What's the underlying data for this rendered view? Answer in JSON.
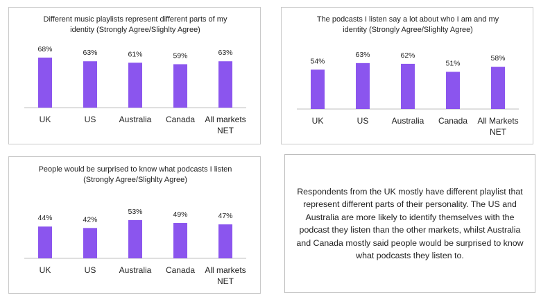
{
  "chart_data": [
    {
      "type": "bar",
      "title": [
        "Different music playlists represent different parts of my",
        "identity (Strongly Agree/Slighlty Agree)"
      ],
      "categories": [
        [
          "UK"
        ],
        [
          "US"
        ],
        [
          "Australia"
        ],
        [
          "Canada"
        ],
        [
          "All markets",
          "NET"
        ]
      ],
      "values": [
        68,
        63,
        61,
        59,
        63
      ],
      "value_labels": [
        "68%",
        "63%",
        "61%",
        "59%",
        "63%"
      ],
      "color": "#8b55ee"
    },
    {
      "type": "bar",
      "title": [
        "The podcasts I listen say a lot about who I am and my",
        "identity (Strongly Agree/Slighlty Agree)"
      ],
      "categories": [
        [
          "UK"
        ],
        [
          "US"
        ],
        [
          "Australia"
        ],
        [
          "Canada"
        ],
        [
          "All Markets",
          "NET"
        ]
      ],
      "values": [
        54,
        63,
        62,
        51,
        58
      ],
      "value_labels": [
        "54%",
        "63%",
        "62%",
        "51%",
        "58%"
      ],
      "color": "#8b55ee"
    },
    {
      "type": "bar",
      "title": [
        "People would be surprised to know what podcasts I listen",
        "(Strongly Agree/Slighlty Agree)"
      ],
      "categories": [
        [
          "UK"
        ],
        [
          "US"
        ],
        [
          "Australia"
        ],
        [
          "Canada"
        ],
        [
          "All markets",
          "NET"
        ]
      ],
      "values": [
        44,
        42,
        53,
        49,
        47
      ],
      "value_labels": [
        "44%",
        "42%",
        "53%",
        "49%",
        "47%"
      ],
      "color": "#8b55ee"
    }
  ],
  "summary": {
    "text": "Respondents from the UK mostly have different playlist that represent different parts of their personality. The US and Australia are more likely to identify themselves with the podcast they listen than the other markets, whilst Australia and Canada mostly said people would be surprised to know what podcasts they listen to."
  }
}
